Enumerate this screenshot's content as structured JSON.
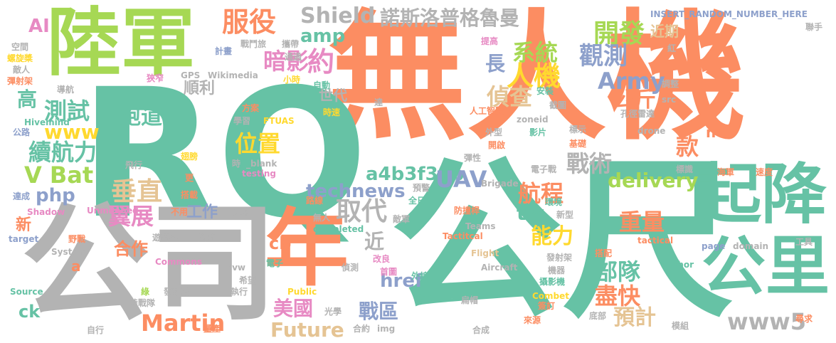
{
  "colors": {
    "teal": "#66c2a5",
    "orange": "#fc8d62",
    "blue": "#8da0cb",
    "pink": "#e78ac3",
    "green": "#a6d854",
    "yellow": "#ffd92f",
    "tan": "#e5c494",
    "gray": "#b3b3b3"
  },
  "words": [
    {
      "text": "無人機",
      "color": "orange"
    },
    {
      "text": "RQ",
      "color": "teal"
    },
    {
      "text": "陸軍",
      "color": "green"
    },
    {
      "text": "公司",
      "color": "gray"
    },
    {
      "text": "公尺",
      "color": "teal"
    },
    {
      "text": "年",
      "color": "orange"
    },
    {
      "text": "起降",
      "color": "teal"
    },
    {
      "text": "公里",
      "color": "teal"
    },
    {
      "text": "諾斯洛普格魯曼",
      "color": "gray"
    },
    {
      "text": "服役",
      "color": "orange"
    },
    {
      "text": "Shield",
      "color": "gray"
    },
    {
      "text": "amp",
      "color": "teal"
    },
    {
      "text": "暗影",
      "color": "pink"
    },
    {
      "text": "約",
      "color": "pink"
    },
    {
      "text": "開發",
      "color": "green"
    },
    {
      "text": "近期",
      "color": "tan"
    },
    {
      "text": "觀測",
      "color": "blue"
    },
    {
      "text": "系統",
      "color": "green"
    },
    {
      "text": "長",
      "color": "blue"
    },
    {
      "text": "人機",
      "color": "yellow"
    },
    {
      "text": "Army",
      "color": "blue"
    },
    {
      "text": "偵查",
      "color": "tan"
    },
    {
      "text": "公斤",
      "color": "orange"
    },
    {
      "text": "高",
      "color": "teal"
    },
    {
      "text": "測試",
      "color": "teal"
    },
    {
      "text": "跑道",
      "color": "teal"
    },
    {
      "text": "www",
      "color": "yellow"
    },
    {
      "text": "續航力",
      "color": "teal"
    },
    {
      "text": "位置",
      "color": "yellow"
    },
    {
      "text": "款",
      "color": "orange"
    },
    {
      "text": "V Bat",
      "color": "green"
    },
    {
      "text": "垂直",
      "color": "tan"
    },
    {
      "text": "php",
      "color": "blue"
    },
    {
      "text": "a4b3f35b",
      "color": "teal"
    },
    {
      "text": "UAV",
      "color": "blue"
    },
    {
      "text": "戰術",
      "color": "gray"
    },
    {
      "text": "delivery",
      "color": "green"
    },
    {
      "text": "technews",
      "color": "blue"
    },
    {
      "text": "航程",
      "color": "orange"
    },
    {
      "text": "取代",
      "color": "gray"
    },
    {
      "text": "翼展",
      "color": "pink"
    },
    {
      "text": "tw",
      "color": "teal"
    },
    {
      "text": "工作",
      "color": "blue"
    },
    {
      "text": "重量",
      "color": "orange"
    },
    {
      "text": "能力",
      "color": "yellow"
    },
    {
      "text": "新",
      "color": "orange"
    },
    {
      "text": "合作",
      "color": "orange"
    },
    {
      "text": "cb",
      "color": "orange"
    },
    {
      "text": "近",
      "color": "gray"
    },
    {
      "text": "href",
      "color": "blue"
    },
    {
      "text": "部隊",
      "color": "teal"
    },
    {
      "text": "美國",
      "color": "pink"
    },
    {
      "text": "戰區",
      "color": "blue"
    },
    {
      "text": "盡快",
      "color": "orange"
    },
    {
      "text": "Martin",
      "color": "orange"
    },
    {
      "text": "預計",
      "color": "tan"
    },
    {
      "text": "Future",
      "color": "tan"
    },
    {
      "text": "www5",
      "color": "gray"
    },
    {
      "text": "ck",
      "color": "teal"
    },
    {
      "text": "AI",
      "color": "pink"
    },
    {
      "text": "世代",
      "color": "gray"
    },
    {
      "text": "順利",
      "color": "gray"
    },
    {
      "text": "INSERT_RANDOM_NUMBER_HERE",
      "color": "blue"
    },
    {
      "text": "聯手",
      "color": "gray"
    },
    {
      "text": "Wikimedia",
      "color": "gray"
    },
    {
      "text": "GPS",
      "color": "gray"
    },
    {
      "text": "FTUAS",
      "color": "yellow"
    },
    {
      "text": "Hivemind",
      "color": "teal"
    },
    {
      "text": "drone",
      "color": "gray"
    },
    {
      "text": "zoneid",
      "color": "gray"
    },
    {
      "text": "testing",
      "color": "pink"
    },
    {
      "text": "_blank",
      "color": "gray"
    },
    {
      "text": "Brigade",
      "color": "gray"
    },
    {
      "text": "Shadow",
      "color": "pink"
    },
    {
      "text": "Unmanned",
      "color": "pink"
    },
    {
      "text": "Teams",
      "color": "gray"
    },
    {
      "text": "Tactitcal",
      "color": "orange"
    },
    {
      "text": "completed",
      "color": "teal"
    },
    {
      "text": "tactical",
      "color": "orange"
    },
    {
      "text": "page",
      "color": "blue"
    },
    {
      "text": "domain",
      "color": "gray"
    },
    {
      "text": "Flight",
      "color": "tan"
    },
    {
      "text": "Aircraft",
      "color": "gray"
    },
    {
      "text": "author",
      "color": "teal"
    },
    {
      "text": "Combet",
      "color": "yellow"
    },
    {
      "text": "System",
      "color": "gray"
    },
    {
      "text": "Commons",
      "color": "pink"
    },
    {
      "text": "avw",
      "color": "gray"
    },
    {
      "text": "target",
      "color": "blue"
    },
    {
      "text": "Source",
      "color": "teal"
    },
    {
      "text": "Public",
      "color": "yellow"
    },
    {
      "text": "img",
      "color": "gray"
    },
    {
      "text": "src",
      "color": "gray"
    },
    {
      "text": "n",
      "color": "orange"
    },
    {
      "text": "a",
      "color": "orange"
    },
    {
      "text": "空間",
      "color": "gray"
    },
    {
      "text": "螺旋槳",
      "color": "yellow"
    },
    {
      "text": "敵人",
      "color": "gray"
    },
    {
      "text": "彈射架",
      "color": "orange"
    },
    {
      "text": "導航",
      "color": "gray"
    },
    {
      "text": "公路",
      "color": "blue"
    },
    {
      "text": "計畫",
      "color": "blue"
    },
    {
      "text": "戰鬥旅",
      "color": "gray"
    },
    {
      "text": "攜帶",
      "color": "gray"
    },
    {
      "text": "通過",
      "color": "gray"
    },
    {
      "text": "狹窄",
      "color": "pink"
    },
    {
      "text": "小時",
      "color": "yellow"
    },
    {
      "text": "自動",
      "color": "teal"
    },
    {
      "text": "達",
      "color": "gray"
    },
    {
      "text": "方案",
      "color": "orange"
    },
    {
      "text": "學習",
      "color": "gray"
    },
    {
      "text": "時速",
      "color": "yellow"
    },
    {
      "text": "提高",
      "color": "pink"
    },
    {
      "text": "紅",
      "color": "gray"
    },
    {
      "text": "調整",
      "color": "gray"
    },
    {
      "text": "安裝",
      "color": "teal"
    },
    {
      "text": "人工智慧",
      "color": "orange"
    },
    {
      "text": "截圖",
      "color": "gray"
    },
    {
      "text": "孔徑雷達",
      "color": "gray"
    },
    {
      "text": "外型",
      "color": "gray"
    },
    {
      "text": "影片",
      "color": "teal"
    },
    {
      "text": "標示",
      "color": "gray"
    },
    {
      "text": "開啟",
      "color": "orange"
    },
    {
      "text": "基礎",
      "color": "orange"
    },
    {
      "text": "翅膀",
      "color": "yellow"
    },
    {
      "text": "飛行",
      "color": "gray"
    },
    {
      "text": "時",
      "color": "gray"
    },
    {
      "text": "更",
      "color": "orange"
    },
    {
      "text": "搭載",
      "color": "orange"
    },
    {
      "text": "不用",
      "color": "orange"
    },
    {
      "text": "未來",
      "color": "gray"
    },
    {
      "text": "巡航",
      "color": "gray"
    },
    {
      "text": "遊騎兵",
      "color": "gray"
    },
    {
      "text": "野戰",
      "color": "orange"
    },
    {
      "text": "無人",
      "color": "gray"
    },
    {
      "text": "路線",
      "color": "orange"
    },
    {
      "text": "全日",
      "color": "teal"
    },
    {
      "text": "預警",
      "color": "gray"
    },
    {
      "text": "彈性",
      "color": "gray"
    },
    {
      "text": "電子戰",
      "color": "gray"
    },
    {
      "text": "標識",
      "color": "gray"
    },
    {
      "text": "海軍",
      "color": "orange"
    },
    {
      "text": "速度",
      "color": "orange"
    },
    {
      "text": "達成",
      "color": "blue"
    },
    {
      "text": "防撞桿",
      "color": "orange"
    },
    {
      "text": "環境",
      "color": "teal"
    },
    {
      "text": "新型",
      "color": "gray"
    },
    {
      "text": "敵軍",
      "color": "gray"
    },
    {
      "text": "改良",
      "color": "pink"
    },
    {
      "text": "首圖",
      "color": "pink"
    },
    {
      "text": "偵測",
      "color": "gray"
    },
    {
      "text": "外線",
      "color": "teal"
    },
    {
      "text": "電子",
      "color": "teal"
    },
    {
      "text": "希望",
      "color": "gray"
    },
    {
      "text": "發射架",
      "color": "gray"
    },
    {
      "text": "機器",
      "color": "gray"
    },
    {
      "text": "攝影機",
      "color": "teal"
    },
    {
      "text": "搭配",
      "color": "orange"
    },
    {
      "text": "工具",
      "color": "gray"
    },
    {
      "text": "發動機",
      "color": "gray"
    },
    {
      "text": "執行",
      "color": "gray"
    },
    {
      "text": "綠",
      "color": "green"
    },
    {
      "text": "陸戰隊",
      "color": "gray"
    },
    {
      "text": "光學",
      "color": "gray"
    },
    {
      "text": "辨識",
      "color": "teal"
    },
    {
      "text": "扁帽",
      "color": "gray"
    },
    {
      "text": "簽訂",
      "color": "orange"
    },
    {
      "text": "底部",
      "color": "gray"
    },
    {
      "text": "尋求",
      "color": "orange"
    },
    {
      "text": "自行",
      "color": "gray"
    },
    {
      "text": "量產",
      "color": "orange"
    },
    {
      "text": "合約",
      "color": "gray"
    },
    {
      "text": "合成",
      "color": "gray"
    },
    {
      "text": "來源",
      "color": "orange"
    },
    {
      "text": "模組",
      "color": "gray"
    }
  ]
}
